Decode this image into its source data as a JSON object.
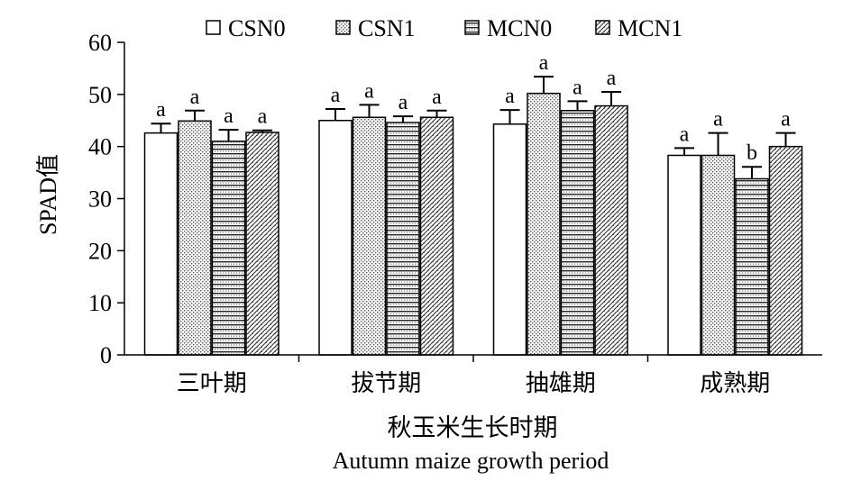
{
  "chart_data": {
    "type": "bar",
    "categories": [
      "三叶期",
      "拔节期",
      "抽雄期",
      "成熟期"
    ],
    "series": [
      {
        "name": "CSN0",
        "values": [
          42.6,
          45.0,
          44.3,
          38.3
        ],
        "errors": [
          1.8,
          2.2,
          2.7,
          1.4
        ],
        "letters": [
          "a",
          "a",
          "a",
          "a"
        ]
      },
      {
        "name": "CSN1",
        "values": [
          44.9,
          45.6,
          50.2,
          38.3
        ],
        "errors": [
          2.0,
          2.4,
          3.2,
          4.3
        ],
        "letters": [
          "a",
          "a",
          "a",
          "a"
        ]
      },
      {
        "name": "MCN0",
        "values": [
          41.0,
          44.6,
          46.9,
          33.8
        ],
        "errors": [
          2.2,
          1.2,
          1.8,
          2.3
        ],
        "letters": [
          "a",
          "a",
          "a",
          "b"
        ]
      },
      {
        "name": "MCN1",
        "values": [
          42.7,
          45.6,
          47.8,
          40.0
        ],
        "errors": [
          0.4,
          1.3,
          2.7,
          2.6
        ],
        "letters": [
          "a",
          "a",
          "a",
          "a"
        ]
      }
    ],
    "ylabel": "SPAD值",
    "xlabel_cn": "秋玉米生长时期",
    "xlabel_en": "Autumn maize growth period",
    "ylim": [
      0,
      60
    ],
    "yticks": [
      0,
      10,
      20,
      30,
      40,
      50,
      60
    ],
    "grid": false,
    "legend_position": "top"
  }
}
